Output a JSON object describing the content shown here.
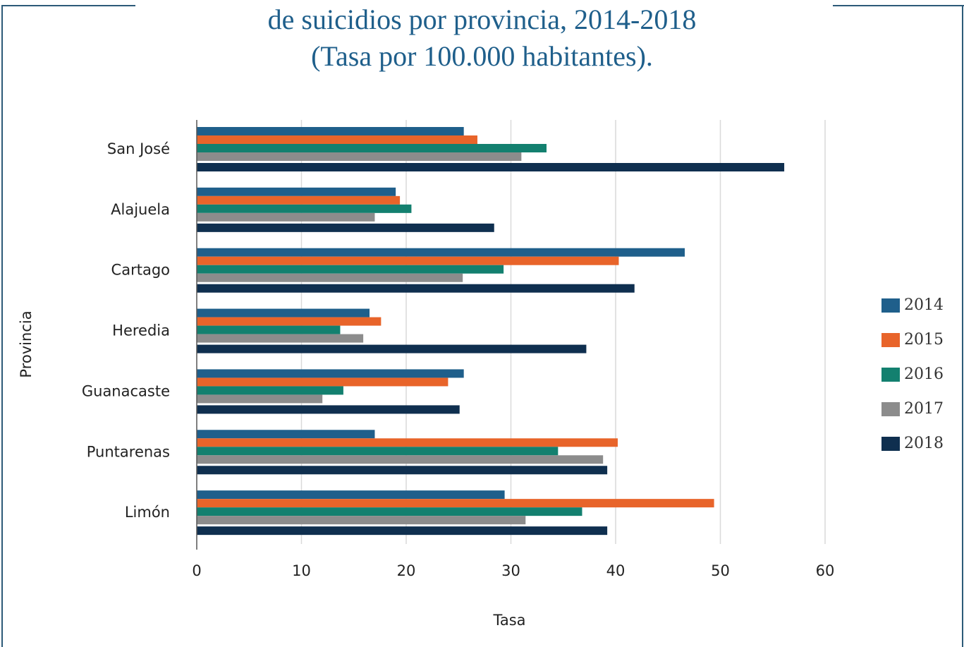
{
  "title_line1": "de suicidios por provincia, 2014-2018",
  "title_line2": "(Tasa por 100.000 habitantes).",
  "chart_data": {
    "type": "bar",
    "orientation": "horizontal",
    "categories": [
      "San José",
      "Alajuela",
      "Cartago",
      "Heredia",
      "Guanacaste",
      "Puntarenas",
      "Limón"
    ],
    "series": [
      {
        "name": "2014",
        "color": "#1f5f8b",
        "values": [
          25.5,
          19.0,
          46.6,
          16.5,
          25.5,
          17.0,
          29.4
        ]
      },
      {
        "name": "2015",
        "color": "#e8642a",
        "values": [
          26.8,
          19.4,
          40.3,
          17.6,
          24.0,
          40.2,
          49.4
        ]
      },
      {
        "name": "2016",
        "color": "#13806f",
        "values": [
          33.4,
          20.5,
          29.3,
          13.7,
          14.0,
          34.5,
          36.8
        ]
      },
      {
        "name": "2017",
        "color": "#8c8c8c",
        "values": [
          31.0,
          17.0,
          25.4,
          15.9,
          12.0,
          38.8,
          31.4
        ]
      },
      {
        "name": "2018",
        "color": "#0f2f4f",
        "values": [
          56.1,
          28.4,
          41.8,
          37.2,
          25.1,
          39.2,
          39.2
        ]
      }
    ],
    "xlabel": "Tasa",
    "ylabel": "Provincia",
    "xlim": [
      0,
      60
    ],
    "ticks": [
      "0",
      "10",
      "20",
      "30",
      "40",
      "50",
      "60"
    ],
    "grid": true,
    "legend_position": "right"
  }
}
